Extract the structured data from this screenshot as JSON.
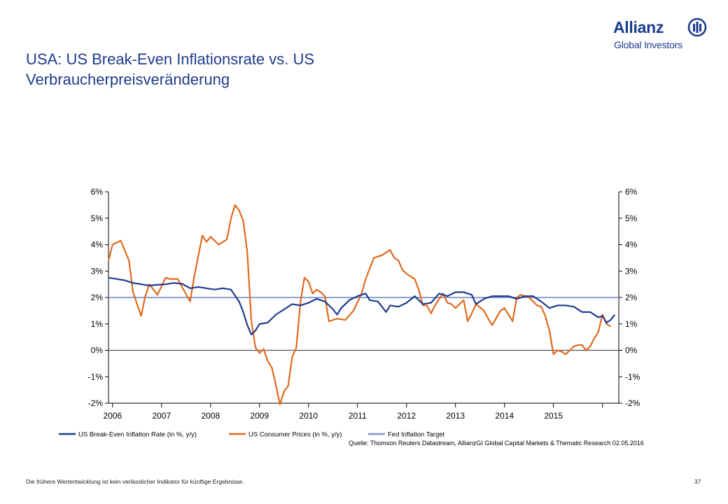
{
  "header": {
    "title": "USA: US Break-Even Inflationsrate vs. US Verbraucherpreisveränderung"
  },
  "logo": {
    "name": "Allianz",
    "subtitle": "Global Investors",
    "brand_color": "#1b3b8c"
  },
  "chart_data": {
    "type": "line",
    "x_tick_labels": [
      "2006",
      "2007",
      "2008",
      "2009",
      "2010",
      "2011",
      "2012",
      "2013",
      "2014",
      "2015"
    ],
    "y_tick_labels_left": [
      "6%",
      "5%",
      "4%",
      "3%",
      "2%",
      "1%",
      "0%",
      "-1%",
      "-2%"
    ],
    "y_tick_labels_right": [
      "6%",
      "5%",
      "4%",
      "3%",
      "2%",
      "1%",
      "0%",
      "-1%",
      "-2%"
    ],
    "ylim": [
      -2,
      6
    ],
    "xlim": [
      "2005-12",
      "2016-05"
    ],
    "grid": false,
    "legend_position": "bottom",
    "series": [
      {
        "name": "US Break-Even Inflation Rate (in %, y/y)",
        "color": "#1f3c8c",
        "x": [
          "2005-12",
          "2006-02",
          "2006-04",
          "2006-06",
          "2006-08",
          "2006-10",
          "2006-12",
          "2007-02",
          "2007-04",
          "2007-06",
          "2007-08",
          "2007-10",
          "2007-12",
          "2008-02",
          "2008-04",
          "2008-06",
          "2008-08",
          "2008-09",
          "2008-10",
          "2008-11",
          "2008-12",
          "2009-01",
          "2009-03",
          "2009-05",
          "2009-07",
          "2009-09",
          "2009-11",
          "2010-01",
          "2010-03",
          "2010-05",
          "2010-07",
          "2010-08",
          "2010-09",
          "2010-11",
          "2011-01",
          "2011-03",
          "2011-04",
          "2011-06",
          "2011-08",
          "2011-09",
          "2011-11",
          "2012-01",
          "2012-03",
          "2012-05",
          "2012-07",
          "2012-09",
          "2012-11",
          "2013-01",
          "2013-03",
          "2013-05",
          "2013-06",
          "2013-08",
          "2013-10",
          "2013-12",
          "2014-02",
          "2014-04",
          "2014-06",
          "2014-08",
          "2014-10",
          "2014-12",
          "2015-02",
          "2015-04",
          "2015-06",
          "2015-08",
          "2015-10",
          "2015-12",
          "2016-01",
          "2016-02",
          "2016-03",
          "2016-04"
        ],
        "values": [
          2.75,
          2.7,
          2.65,
          2.55,
          2.5,
          2.45,
          2.48,
          2.5,
          2.55,
          2.52,
          2.35,
          2.4,
          2.35,
          2.3,
          2.35,
          2.3,
          1.85,
          1.45,
          0.95,
          0.6,
          0.75,
          1.0,
          1.05,
          1.35,
          1.55,
          1.75,
          1.7,
          1.8,
          1.95,
          1.85,
          1.55,
          1.35,
          1.6,
          1.9,
          2.05,
          2.15,
          1.9,
          1.85,
          1.45,
          1.7,
          1.65,
          1.8,
          2.05,
          1.75,
          1.8,
          2.15,
          2.05,
          2.2,
          2.2,
          2.1,
          1.75,
          1.95,
          2.05,
          2.05,
          2.05,
          1.95,
          2.05,
          2.05,
          1.85,
          1.6,
          1.7,
          1.7,
          1.65,
          1.45,
          1.45,
          1.25,
          1.3,
          1.05,
          1.15,
          1.35
        ]
      },
      {
        "name": "US Consumer Prices (in %, y/y)",
        "color": "#e06a1e",
        "x": [
          "2005-12",
          "2006-01",
          "2006-03",
          "2006-05",
          "2006-06",
          "2006-08",
          "2006-09",
          "2006-10",
          "2006-12",
          "2007-02",
          "2007-03",
          "2007-05",
          "2007-06",
          "2007-08",
          "2007-09",
          "2007-11",
          "2007-12",
          "2008-01",
          "2008-03",
          "2008-05",
          "2008-06",
          "2008-07",
          "2008-08",
          "2008-09",
          "2008-10",
          "2008-11",
          "2008-12",
          "2009-01",
          "2009-02",
          "2009-03",
          "2009-04",
          "2009-05",
          "2009-06",
          "2009-07",
          "2009-08",
          "2009-09",
          "2009-10",
          "2009-11",
          "2009-12",
          "2010-01",
          "2010-02",
          "2010-03",
          "2010-04",
          "2010-05",
          "2010-06",
          "2010-08",
          "2010-10",
          "2010-12",
          "2011-02",
          "2011-03",
          "2011-05",
          "2011-07",
          "2011-09",
          "2011-10",
          "2011-11",
          "2011-12",
          "2012-01",
          "2012-03",
          "2012-04",
          "2012-05",
          "2012-06",
          "2012-07",
          "2012-08",
          "2012-09",
          "2012-10",
          "2012-11",
          "2012-12",
          "2013-01",
          "2013-03",
          "2013-04",
          "2013-05",
          "2013-06",
          "2013-08",
          "2013-09",
          "2013-10",
          "2013-12",
          "2014-01",
          "2014-03",
          "2014-04",
          "2014-05",
          "2014-06",
          "2014-07",
          "2014-09",
          "2014-10",
          "2014-11",
          "2014-12",
          "2015-01",
          "2015-02",
          "2015-03",
          "2015-04",
          "2015-05",
          "2015-06",
          "2015-07",
          "2015-08",
          "2015-09",
          "2015-10",
          "2015-11",
          "2015-12",
          "2016-01",
          "2016-02",
          "2016-03"
        ],
        "values": [
          3.4,
          4.0,
          4.15,
          3.4,
          2.2,
          1.3,
          2.05,
          2.5,
          2.1,
          2.75,
          2.7,
          2.7,
          2.4,
          1.85,
          2.8,
          4.35,
          4.1,
          4.3,
          4.0,
          4.2,
          5.0,
          5.5,
          5.3,
          4.9,
          3.7,
          1.1,
          0.1,
          -0.1,
          0.05,
          -0.4,
          -0.65,
          -1.3,
          -2.05,
          -1.55,
          -1.35,
          -0.25,
          0.1,
          1.8,
          2.75,
          2.6,
          2.15,
          2.3,
          2.2,
          2.05,
          1.1,
          1.2,
          1.15,
          1.5,
          2.15,
          2.7,
          3.5,
          3.6,
          3.8,
          3.5,
          3.4,
          3.05,
          2.9,
          2.7,
          2.3,
          1.7,
          1.7,
          1.4,
          1.7,
          1.95,
          2.15,
          1.8,
          1.75,
          1.6,
          1.9,
          1.1,
          1.4,
          1.75,
          1.5,
          1.2,
          0.95,
          1.5,
          1.6,
          1.1,
          2.0,
          2.1,
          2.05,
          2.0,
          1.7,
          1.65,
          1.3,
          0.75,
          -0.15,
          0.0,
          -0.05,
          -0.15,
          0.0,
          0.15,
          0.2,
          0.2,
          0.0,
          0.15,
          0.45,
          0.7,
          1.35,
          1.0,
          0.9
        ]
      },
      {
        "name": "Fed Inflation Target",
        "color": "#7b95cf",
        "x": [
          "2005-12",
          "2016-05"
        ],
        "values": [
          2.0,
          2.0
        ]
      }
    ]
  },
  "legend": {
    "items": [
      {
        "label": "US Break-Even Inflation Rate (in %, y/y)",
        "color": "#1f3c8c"
      },
      {
        "label": "US Consumer Prices (in %, y/y)",
        "color": "#e06a1e"
      },
      {
        "label": "Fed Inflation Target",
        "color": "#7b95cf"
      }
    ]
  },
  "source_note": "Quelle: Thomson Reuters Datastream, AllianzGI Global Capital Markets & Thematic Research 02.05.2016",
  "footer": {
    "disclaimer": "Die frühere Wertentwicklung ist kein verlässlicher Indikator für künftige Ergebnisse.",
    "page_number": "37"
  }
}
